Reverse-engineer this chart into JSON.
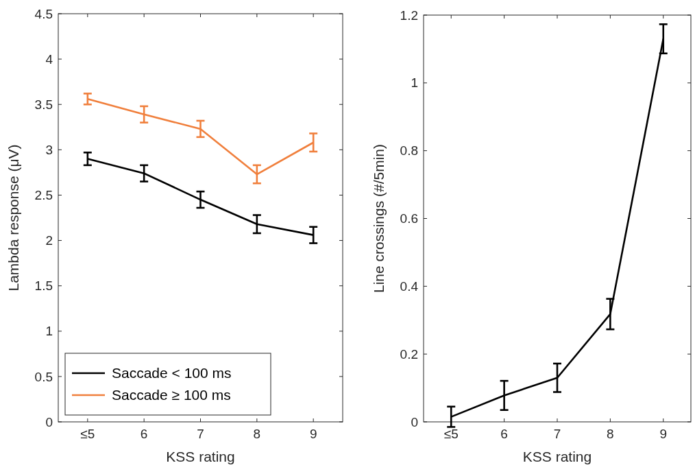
{
  "chart_data": [
    {
      "type": "line",
      "categories": [
        "≤5",
        "6",
        "7",
        "8",
        "9"
      ],
      "xlabel": "KSS rating",
      "ylabel": "Lambda response (μV)",
      "ylim": [
        0,
        4.5
      ],
      "yticks": [
        0,
        0.5,
        1,
        1.5,
        2,
        2.5,
        3,
        3.5,
        4,
        4.5
      ],
      "grid": false,
      "legend": "bottom",
      "marker": "none",
      "line_style": "solid",
      "series": [
        {
          "name": "Saccade < 100 ms",
          "color": "#000000",
          "values": [
            2.9,
            2.74,
            2.45,
            2.18,
            2.06
          ],
          "errors": [
            0.07,
            0.09,
            0.09,
            0.1,
            0.09
          ]
        },
        {
          "name": "Saccade ≥ 100 ms",
          "color": "#f07f3c",
          "values": [
            3.56,
            3.39,
            3.23,
            2.73,
            3.08
          ],
          "errors": [
            0.06,
            0.09,
            0.09,
            0.1,
            0.1
          ]
        }
      ]
    },
    {
      "type": "line",
      "categories": [
        "≤5",
        "6",
        "7",
        "8",
        "9"
      ],
      "xlabel": "KSS rating",
      "ylabel": "Line crossings (#/5min)",
      "ylim": [
        0,
        1.2
      ],
      "yticks": [
        0,
        0.2,
        0.4,
        0.6,
        0.8,
        1,
        1.2
      ],
      "grid": false,
      "legend": false,
      "marker": "none",
      "line_style": "solid",
      "series": [
        {
          "color": "#000000",
          "values": [
            0.015,
            0.078,
            0.13,
            0.318,
            1.13
          ],
          "errors": [
            0.03,
            0.043,
            0.042,
            0.045,
            0.043
          ]
        }
      ]
    }
  ]
}
